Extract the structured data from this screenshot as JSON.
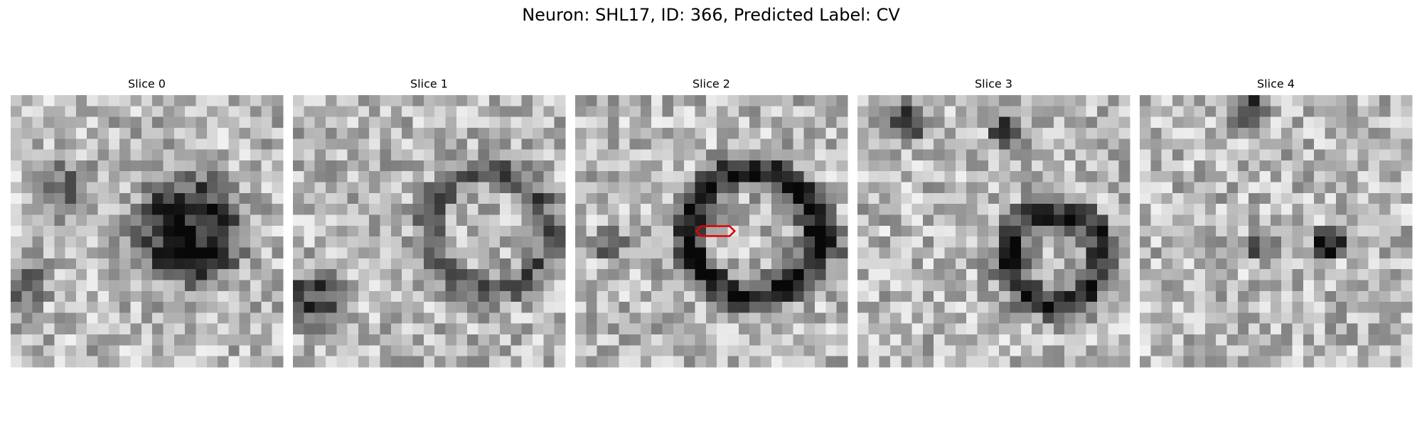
{
  "title": "Neuron: SHL17, ID: 366, Predicted Label: CV",
  "panels": [
    {
      "title": "Slice 0"
    },
    {
      "title": "Slice 1"
    },
    {
      "title": "Slice 2"
    },
    {
      "title": "Slice 3"
    },
    {
      "title": "Slice 4"
    }
  ]
}
